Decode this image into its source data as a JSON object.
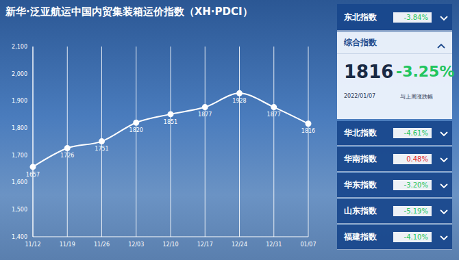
{
  "chart_data": {
    "type": "line",
    "title": "新华·泛亚航运中国内贸集装箱运价指数（XH·PDCI）",
    "categories": [
      "11/12",
      "11/19",
      "11/26",
      "12/03",
      "12/10",
      "12/17",
      "12/24",
      "12/31",
      "01/07"
    ],
    "values": [
      1657,
      1726,
      1751,
      1820,
      1851,
      1877,
      1928,
      1877,
      1816
    ],
    "color": "#ffffff",
    "marker": "circle",
    "data_labels": true,
    "grid": true,
    "ylim": [
      1400,
      2100
    ],
    "yticks": [
      {
        "value": 1400,
        "label": "1,400"
      },
      {
        "value": 1500,
        "label": "1,500"
      },
      {
        "value": 1600,
        "label": "1,600"
      },
      {
        "value": 1700,
        "label": "1,700"
      },
      {
        "value": 1800,
        "label": "1,800"
      },
      {
        "value": 1900,
        "label": "1,900"
      },
      {
        "value": 2000,
        "label": "2,000"
      },
      {
        "value": 2100,
        "label": "2,100"
      }
    ]
  },
  "panel": {
    "top": {
      "name": "东北指数",
      "change": "-3.84%"
    },
    "main": {
      "name": "综合指数",
      "value": "1816",
      "change": "-3.25%",
      "date": "2022/01/07",
      "note": "与上周涨跌幅"
    },
    "items": [
      {
        "name": "华北指数",
        "change": "-4.61%"
      },
      {
        "name": "华南指数",
        "change": "0.48%"
      },
      {
        "name": "华东指数",
        "change": "-3.20%"
      },
      {
        "name": "山东指数",
        "change": "-5.19%"
      },
      {
        "name": "福建指数",
        "change": "-4.10%"
      }
    ]
  }
}
